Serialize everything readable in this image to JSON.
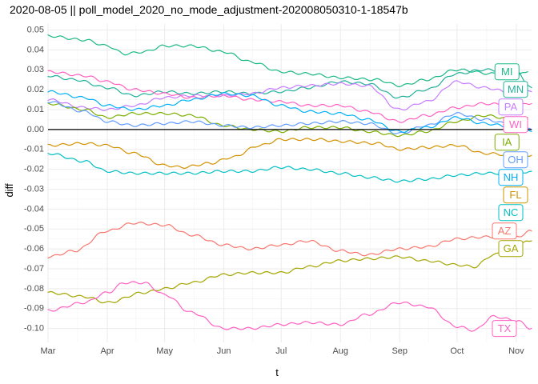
{
  "chart_data": {
    "type": "line",
    "title": "2020-08-05 || poll_model_2020_no_mode_adjustment-202008050310-1-18547b",
    "xlabel": "t",
    "ylabel": "diff",
    "x_range": [
      "2020-03-01",
      "2020-11-09"
    ],
    "ylim": [
      -0.107,
      0.053
    ],
    "x_ticks": [
      "2020-03-01",
      "2020-04-01",
      "2020-05-01",
      "2020-06-01",
      "2020-07-01",
      "2020-08-01",
      "2020-09-01",
      "2020-10-01",
      "2020-11-01"
    ],
    "x_tick_labels": [
      "Mar",
      "Apr",
      "May",
      "Jun",
      "Jul",
      "Aug",
      "Sep",
      "Oct",
      "Nov"
    ],
    "y_ticks": [
      0.05,
      0.04,
      0.03,
      0.02,
      0.01,
      0.0,
      -0.01,
      -0.02,
      -0.03,
      -0.04,
      -0.05,
      -0.06,
      -0.07,
      -0.08,
      -0.09,
      -0.1
    ],
    "y_tick_labels": [
      "0.05",
      "0.04",
      "0.03",
      "0.02",
      "0.01",
      "0.00",
      "-0.01",
      "-0.02",
      "-0.03",
      "-0.04",
      "-0.05",
      "-0.06",
      "-0.07",
      "-0.08",
      "-0.09",
      "-0.10"
    ],
    "reference_line": 0.0,
    "grid": true,
    "legend": "none (direct labels at line ends)",
    "series": [
      {
        "name": "MI",
        "color": "#1AB886",
        "points": [
          [
            "2020-03-01",
            0.047
          ],
          [
            "2020-03-20",
            0.045
          ],
          [
            "2020-04-01",
            0.042
          ],
          [
            "2020-04-10",
            0.038
          ],
          [
            "2020-04-20",
            0.039
          ],
          [
            "2020-05-01",
            0.042
          ],
          [
            "2020-05-15",
            0.042
          ],
          [
            "2020-06-01",
            0.039
          ],
          [
            "2020-06-15",
            0.034
          ],
          [
            "2020-07-01",
            0.029
          ],
          [
            "2020-07-15",
            0.028
          ],
          [
            "2020-08-01",
            0.026
          ],
          [
            "2020-08-20",
            0.025
          ],
          [
            "2020-09-01",
            0.022
          ],
          [
            "2020-09-15",
            0.025
          ],
          [
            "2020-10-01",
            0.03
          ],
          [
            "2020-10-20",
            0.028
          ],
          [
            "2020-11-01",
            0.027
          ],
          [
            "2020-11-07",
            0.029
          ]
        ]
      },
      {
        "name": "MN",
        "color": "#22B19A",
        "points": [
          [
            "2020-03-01",
            0.027
          ],
          [
            "2020-03-15",
            0.025
          ],
          [
            "2020-04-01",
            0.021
          ],
          [
            "2020-04-15",
            0.017
          ],
          [
            "2020-05-01",
            0.019
          ],
          [
            "2020-05-15",
            0.018
          ],
          [
            "2020-06-01",
            0.019
          ],
          [
            "2020-06-15",
            0.018
          ],
          [
            "2020-07-01",
            0.019
          ],
          [
            "2020-07-15",
            0.021
          ],
          [
            "2020-08-01",
            0.024
          ],
          [
            "2020-08-15",
            0.023
          ],
          [
            "2020-09-01",
            0.016
          ],
          [
            "2020-09-15",
            0.02
          ],
          [
            "2020-10-01",
            0.028
          ],
          [
            "2020-10-15",
            0.03
          ],
          [
            "2020-11-01",
            0.029
          ],
          [
            "2020-11-09",
            0.021
          ]
        ]
      },
      {
        "name": "PA",
        "color": "#C77CFF",
        "points": [
          [
            "2020-03-01",
            0.015
          ],
          [
            "2020-03-20",
            0.011
          ],
          [
            "2020-04-01",
            0.01
          ],
          [
            "2020-04-15",
            0.012
          ],
          [
            "2020-05-01",
            0.016
          ],
          [
            "2020-05-15",
            0.017
          ],
          [
            "2020-06-01",
            0.017
          ],
          [
            "2020-06-15",
            0.018
          ],
          [
            "2020-07-01",
            0.021
          ],
          [
            "2020-07-15",
            0.022
          ],
          [
            "2020-08-01",
            0.023
          ],
          [
            "2020-08-15",
            0.022
          ],
          [
            "2020-09-01",
            0.01
          ],
          [
            "2020-09-15",
            0.014
          ],
          [
            "2020-10-01",
            0.024
          ],
          [
            "2020-10-15",
            0.021
          ],
          [
            "2020-11-01",
            0.018
          ],
          [
            "2020-11-09",
            0.019
          ]
        ]
      },
      {
        "name": "WI",
        "color": "#FF61C3",
        "points": [
          [
            "2020-03-01",
            0.029
          ],
          [
            "2020-03-20",
            0.027
          ],
          [
            "2020-04-01",
            0.024
          ],
          [
            "2020-04-15",
            0.02
          ],
          [
            "2020-05-01",
            0.018
          ],
          [
            "2020-05-15",
            0.016
          ],
          [
            "2020-06-01",
            0.017
          ],
          [
            "2020-06-15",
            0.015
          ],
          [
            "2020-07-01",
            0.014
          ],
          [
            "2020-07-15",
            0.012
          ],
          [
            "2020-08-01",
            0.012
          ],
          [
            "2020-08-15",
            0.009
          ],
          [
            "2020-09-01",
            0.004
          ],
          [
            "2020-09-15",
            0.007
          ],
          [
            "2020-10-01",
            0.011
          ],
          [
            "2020-10-15",
            0.013
          ],
          [
            "2020-11-01",
            0.012
          ],
          [
            "2020-11-09",
            0.013
          ]
        ]
      },
      {
        "name": "IA",
        "color": "#7CAE00",
        "points": [
          [
            "2020-03-01",
            0.013
          ],
          [
            "2020-03-20",
            0.01
          ],
          [
            "2020-04-01",
            0.006
          ],
          [
            "2020-04-15",
            0.008
          ],
          [
            "2020-05-01",
            0.008
          ],
          [
            "2020-05-15",
            0.007
          ],
          [
            "2020-06-01",
            0.002
          ],
          [
            "2020-06-15",
            0.0
          ],
          [
            "2020-07-01",
            -0.001
          ],
          [
            "2020-07-15",
            0.001
          ],
          [
            "2020-08-01",
            0.001
          ],
          [
            "2020-08-15",
            -0.001
          ],
          [
            "2020-09-01",
            -0.003
          ],
          [
            "2020-09-15",
            -0.001
          ],
          [
            "2020-10-01",
            0.004
          ],
          [
            "2020-10-15",
            0.007
          ],
          [
            "2020-11-01",
            0.005
          ],
          [
            "2020-11-07",
            0.006
          ]
        ]
      },
      {
        "name": "OH",
        "color": "#619CFF",
        "points": [
          [
            "2020-03-01",
            0.014
          ],
          [
            "2020-03-20",
            0.009
          ],
          [
            "2020-04-01",
            0.004
          ],
          [
            "2020-04-15",
            0.002
          ],
          [
            "2020-05-01",
            0.003
          ],
          [
            "2020-05-15",
            0.004
          ],
          [
            "2020-06-01",
            0.002
          ],
          [
            "2020-06-15",
            0.001
          ],
          [
            "2020-07-01",
            0.002
          ],
          [
            "2020-07-15",
            0.003
          ],
          [
            "2020-08-01",
            0.004
          ],
          [
            "2020-08-15",
            0.003
          ],
          [
            "2020-09-01",
            -0.002
          ],
          [
            "2020-09-15",
            0.002
          ],
          [
            "2020-10-01",
            0.008
          ],
          [
            "2020-10-15",
            0.005
          ],
          [
            "2020-11-01",
            0.002
          ],
          [
            "2020-11-09",
            0.0
          ]
        ]
      },
      {
        "name": "NH",
        "color": "#00B0F6",
        "points": [
          [
            "2020-03-01",
            0.019
          ],
          [
            "2020-03-20",
            0.016
          ],
          [
            "2020-04-01",
            0.012
          ],
          [
            "2020-04-15",
            0.01
          ],
          [
            "2020-05-01",
            0.012
          ],
          [
            "2020-05-15",
            0.015
          ],
          [
            "2020-06-01",
            0.018
          ],
          [
            "2020-06-15",
            0.017
          ],
          [
            "2020-07-01",
            0.012
          ],
          [
            "2020-07-15",
            0.009
          ],
          [
            "2020-08-01",
            0.008
          ],
          [
            "2020-08-15",
            0.005
          ],
          [
            "2020-09-01",
            -0.001
          ],
          [
            "2020-09-15",
            0.001
          ],
          [
            "2020-10-01",
            0.006
          ],
          [
            "2020-10-15",
            0.003
          ],
          [
            "2020-11-01",
            0.001
          ],
          [
            "2020-11-09",
            -0.001
          ]
        ]
      },
      {
        "name": "FL",
        "color": "#D39200",
        "points": [
          [
            "2020-03-01",
            -0.008
          ],
          [
            "2020-03-20",
            -0.007
          ],
          [
            "2020-04-01",
            -0.008
          ],
          [
            "2020-04-15",
            -0.012
          ],
          [
            "2020-05-01",
            -0.018
          ],
          [
            "2020-05-10",
            -0.019
          ],
          [
            "2020-05-25",
            -0.017
          ],
          [
            "2020-06-05",
            -0.014
          ],
          [
            "2020-06-20",
            -0.008
          ],
          [
            "2020-07-01",
            -0.005
          ],
          [
            "2020-07-20",
            -0.005
          ],
          [
            "2020-08-01",
            -0.006
          ],
          [
            "2020-08-20",
            -0.007
          ],
          [
            "2020-09-01",
            -0.01
          ],
          [
            "2020-09-15",
            -0.009
          ],
          [
            "2020-10-01",
            -0.008
          ],
          [
            "2020-10-15",
            -0.012
          ],
          [
            "2020-11-01",
            -0.013
          ],
          [
            "2020-11-09",
            -0.013
          ]
        ]
      },
      {
        "name": "NC",
        "color": "#00BFC4",
        "points": [
          [
            "2020-03-01",
            -0.012
          ],
          [
            "2020-03-20",
            -0.016
          ],
          [
            "2020-04-01",
            -0.021
          ],
          [
            "2020-04-15",
            -0.022
          ],
          [
            "2020-05-01",
            -0.022
          ],
          [
            "2020-05-15",
            -0.022
          ],
          [
            "2020-06-01",
            -0.021
          ],
          [
            "2020-06-15",
            -0.021
          ],
          [
            "2020-07-01",
            -0.019
          ],
          [
            "2020-07-15",
            -0.02
          ],
          [
            "2020-08-01",
            -0.022
          ],
          [
            "2020-08-15",
            -0.024
          ],
          [
            "2020-09-01",
            -0.026
          ],
          [
            "2020-09-15",
            -0.025
          ],
          [
            "2020-10-01",
            -0.023
          ],
          [
            "2020-10-15",
            -0.022
          ],
          [
            "2020-11-01",
            -0.022
          ],
          [
            "2020-11-09",
            -0.021
          ]
        ]
      },
      {
        "name": "AZ",
        "color": "#F8766D",
        "points": [
          [
            "2020-03-01",
            -0.064
          ],
          [
            "2020-03-15",
            -0.061
          ],
          [
            "2020-04-01",
            -0.051
          ],
          [
            "2020-04-15",
            -0.047
          ],
          [
            "2020-05-01",
            -0.048
          ],
          [
            "2020-05-15",
            -0.053
          ],
          [
            "2020-06-01",
            -0.058
          ],
          [
            "2020-06-15",
            -0.06
          ],
          [
            "2020-07-01",
            -0.058
          ],
          [
            "2020-07-15",
            -0.056
          ],
          [
            "2020-08-01",
            -0.061
          ],
          [
            "2020-08-15",
            -0.063
          ],
          [
            "2020-09-01",
            -0.06
          ],
          [
            "2020-09-15",
            -0.059
          ],
          [
            "2020-10-01",
            -0.055
          ],
          [
            "2020-10-15",
            -0.054
          ],
          [
            "2020-11-01",
            -0.054
          ],
          [
            "2020-11-09",
            -0.051
          ]
        ]
      },
      {
        "name": "GA",
        "color": "#A3A500",
        "points": [
          [
            "2020-03-01",
            -0.082
          ],
          [
            "2020-03-20",
            -0.084
          ],
          [
            "2020-04-01",
            -0.087
          ],
          [
            "2020-04-20",
            -0.082
          ],
          [
            "2020-05-01",
            -0.08
          ],
          [
            "2020-05-15",
            -0.077
          ],
          [
            "2020-06-01",
            -0.073
          ],
          [
            "2020-06-15",
            -0.072
          ],
          [
            "2020-07-01",
            -0.072
          ],
          [
            "2020-07-15",
            -0.069
          ],
          [
            "2020-08-01",
            -0.066
          ],
          [
            "2020-08-15",
            -0.065
          ],
          [
            "2020-09-01",
            -0.064
          ],
          [
            "2020-09-15",
            -0.066
          ],
          [
            "2020-10-01",
            -0.068
          ],
          [
            "2020-10-10",
            -0.069
          ],
          [
            "2020-10-20",
            -0.063
          ],
          [
            "2020-11-01",
            -0.058
          ],
          [
            "2020-11-09",
            -0.056
          ]
        ]
      },
      {
        "name": "TX",
        "color": "#FF61C3",
        "points": [
          [
            "2020-03-01",
            -0.091
          ],
          [
            "2020-03-20",
            -0.087
          ],
          [
            "2020-04-01",
            -0.082
          ],
          [
            "2020-04-10",
            -0.077
          ],
          [
            "2020-04-20",
            -0.077
          ],
          [
            "2020-05-01",
            -0.083
          ],
          [
            "2020-05-15",
            -0.092
          ],
          [
            "2020-06-01",
            -0.1
          ],
          [
            "2020-06-15",
            -0.1
          ],
          [
            "2020-07-01",
            -0.098
          ],
          [
            "2020-07-15",
            -0.097
          ],
          [
            "2020-08-01",
            -0.098
          ],
          [
            "2020-08-15",
            -0.093
          ],
          [
            "2020-09-01",
            -0.087
          ],
          [
            "2020-09-15",
            -0.089
          ],
          [
            "2020-10-01",
            -0.099
          ],
          [
            "2020-10-10",
            -0.101
          ],
          [
            "2020-10-20",
            -0.094
          ],
          [
            "2020-11-01",
            -0.096
          ],
          [
            "2020-11-09",
            -0.1
          ]
        ]
      }
    ]
  }
}
